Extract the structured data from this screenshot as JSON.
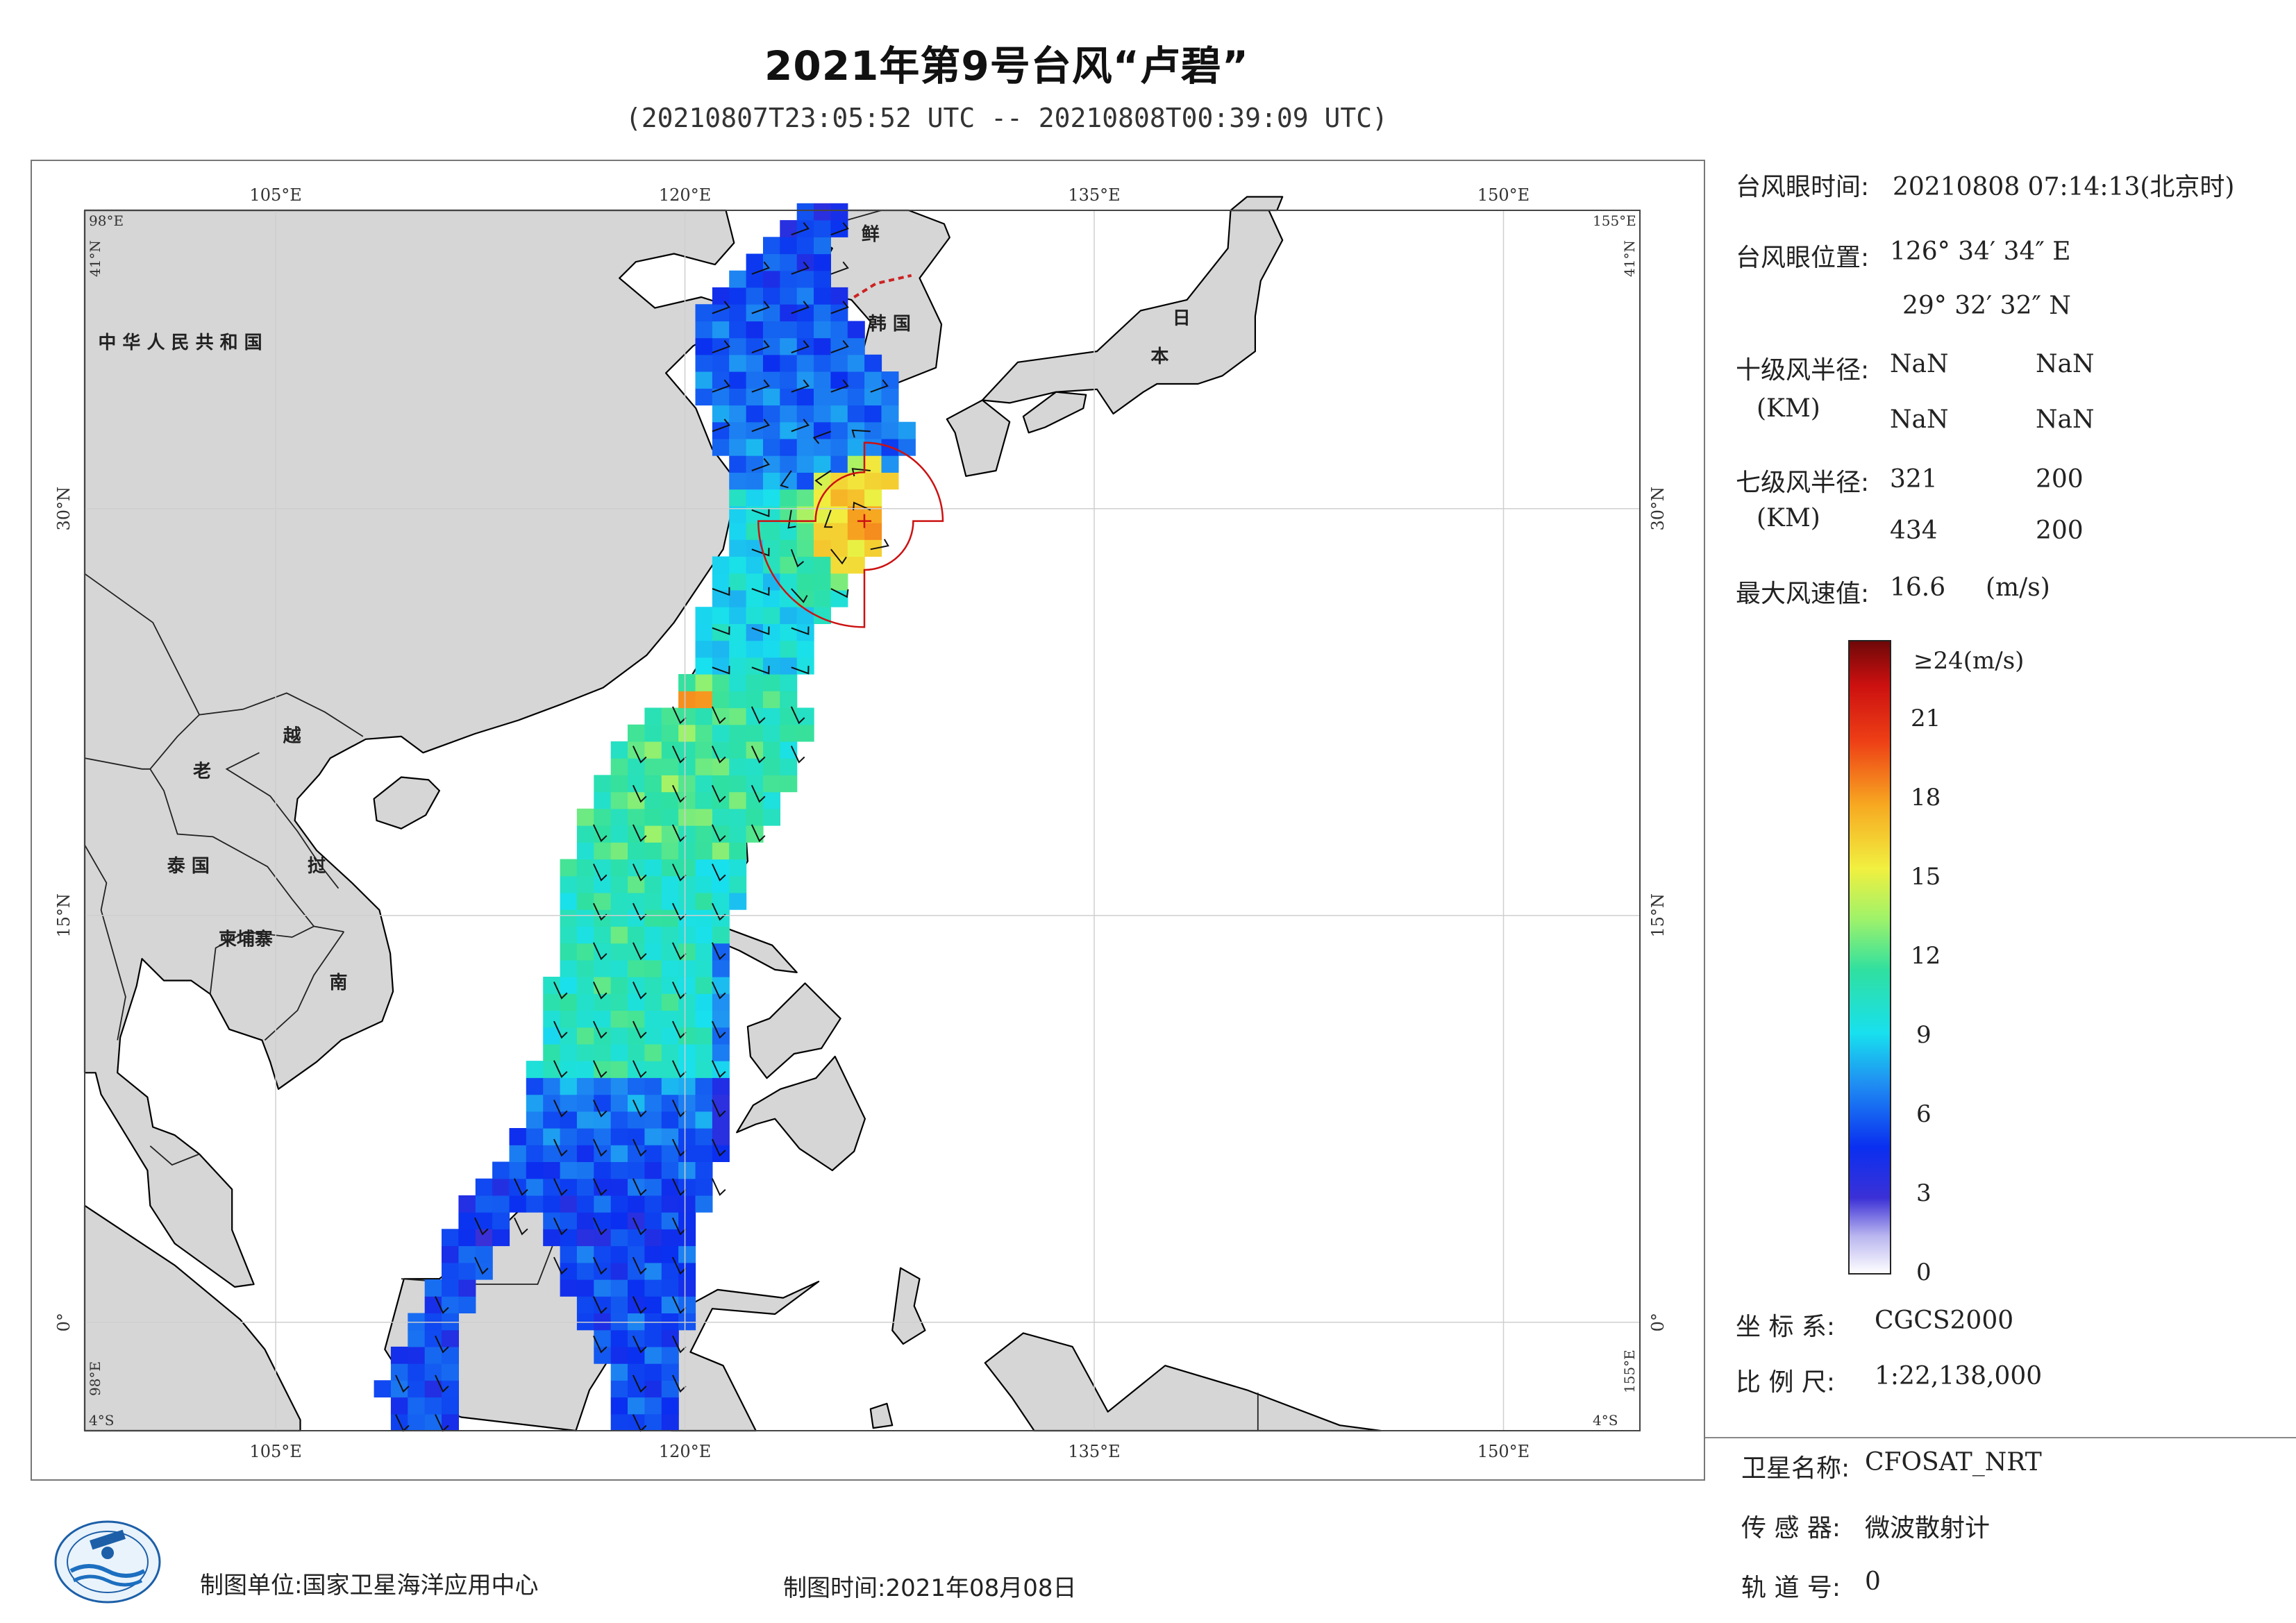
{
  "header": {
    "title": "2021年第9号台风“卢碧”",
    "subtitle": "(20210807T23:05:52 UTC -- 20210808T00:39:09 UTC)"
  },
  "map": {
    "lon_ticks": [
      "105°E",
      "120°E",
      "135°E",
      "150°E"
    ],
    "lat_ticks_left": [
      "30°N",
      "15°N",
      "0°"
    ],
    "lat_ticks_right": [
      "30°N",
      "15°N",
      "0°"
    ],
    "corner_labels": {
      "top_left_lon": "98°E",
      "top_left_lat": "41°N",
      "top_right_lon": "155°E",
      "top_right_lat": "41°N",
      "bottom_left_lon": "98°E",
      "bottom_left_lat": "4°S",
      "bottom_right_lon": "155°E",
      "bottom_right_lat": "4°S"
    },
    "extent": {
      "lon_min": 98,
      "lon_max": 155,
      "lat_min": -4,
      "lat_max": 41
    },
    "country_labels": [
      {
        "text": "中 华 人 民 共 和 国",
        "lon": 101.5,
        "lat": 35.9
      },
      {
        "text": "鲜",
        "lon": 126.8,
        "lat": 39.9
      },
      {
        "text": "韩 国",
        "lon": 127.5,
        "lat": 36.6
      },
      {
        "text": "日",
        "lon": 138.2,
        "lat": 36.8
      },
      {
        "text": "本",
        "lon": 137.4,
        "lat": 35.4
      },
      {
        "text": "老",
        "lon": 102.3,
        "lat": 20.1
      },
      {
        "text": "越",
        "lon": 105.6,
        "lat": 21.4
      },
      {
        "text": "泰 国",
        "lon": 101.8,
        "lat": 16.6
      },
      {
        "text": "挝",
        "lon": 106.5,
        "lat": 16.6
      },
      {
        "text": "柬埔寨",
        "lon": 103.9,
        "lat": 13.9
      },
      {
        "text": "南",
        "lon": 107.3,
        "lat": 12.3
      }
    ],
    "colors": {
      "land": "#d6d6d6",
      "ocean": "#ffffff",
      "coast": "#000000",
      "wind_radius": "#cc1111"
    },
    "typhoon_eye": {
      "lon": 126.576,
      "lat": 29.542
    }
  },
  "info": {
    "eye_time_label": "台风眼时间:",
    "eye_time_value": "20210808 07:14:13(北京时)",
    "eye_pos_label": "台风眼位置:",
    "eye_pos_lon": "126° 34′ 34″ E",
    "eye_pos_lat": "29° 32′ 32″ N",
    "r10_label": "十级风半径:",
    "r10_unit": "(KM)",
    "r10_values": [
      "NaN",
      "NaN",
      "NaN",
      "NaN"
    ],
    "r7_label": "七级风半径:",
    "r7_unit": "(KM)",
    "r7_values": [
      "321",
      "200",
      "434",
      "200"
    ],
    "max_wind_label": "最大风速值:",
    "max_wind_value": "16.6",
    "max_wind_unit": "(m/s)"
  },
  "colorbar": {
    "min": 0,
    "max": 24,
    "top_label": "≥24(m/s)",
    "tick_labels": [
      "21",
      "18",
      "15",
      "12",
      "9",
      "6",
      "3",
      "0"
    ],
    "tick_values": [
      21,
      18,
      15,
      12,
      9,
      6,
      3,
      0
    ]
  },
  "meta": {
    "crs_label": "坐 标 系:",
    "crs_value": "CGCS2000",
    "scale_label": "比 例 尺:",
    "scale_value": "1:22,138,000",
    "satellite_label": "卫星名称:",
    "satellite_value": "CFOSAT_NRT",
    "sensor_label": "传 感 器:",
    "sensor_value": "微波散射计",
    "orbit_label": "轨 道 号:",
    "orbit_value": "0"
  },
  "footer": {
    "unit": "制图单位:国家卫星海洋应用中心",
    "time": "制图时间:2021年08月08日"
  }
}
